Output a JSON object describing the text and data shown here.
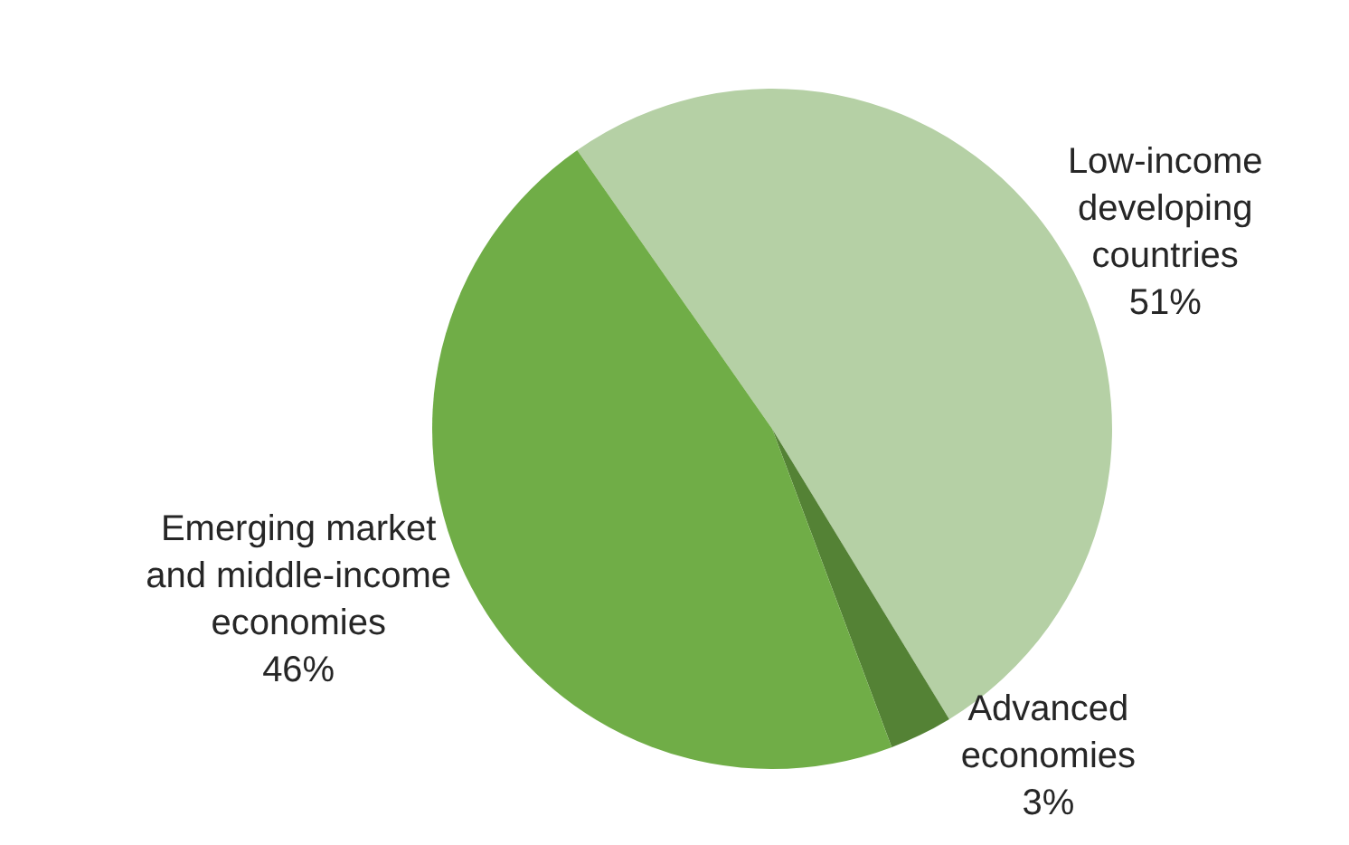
{
  "chart_data": {
    "type": "pie",
    "categories": [
      "Low-income developing countries",
      "Advanced economies",
      "Emerging market and middle-income economies"
    ],
    "values": [
      51,
      3,
      46
    ],
    "colors": [
      "#b5d0a5",
      "#548235",
      "#70ad47"
    ],
    "value_labels": [
      "51%",
      "3%",
      "46%"
    ]
  }
}
